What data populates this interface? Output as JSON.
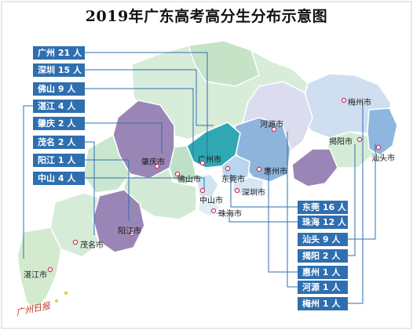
{
  "title": "2019年广东高考高分生分布示意图",
  "left_labels": [
    {
      "id": "guangzhou",
      "text": "广州 21 人"
    },
    {
      "id": "shenzhen",
      "text": "深圳 15 人"
    },
    {
      "id": "foshan",
      "text": "佛山 9 人"
    },
    {
      "id": "zhanjiang",
      "text": "湛江 4 人"
    },
    {
      "id": "zhaoqing",
      "text": "肇庆 2 人"
    },
    {
      "id": "maoming",
      "text": "茂名 2 人"
    },
    {
      "id": "yangjiang",
      "text": "阳江 1 人"
    },
    {
      "id": "zhongshan",
      "text": "中山 4 人"
    }
  ],
  "right_labels": [
    {
      "id": "dongguan",
      "text": "东莞 16 人"
    },
    {
      "id": "zhuhai",
      "text": "珠海 12 人"
    },
    {
      "id": "shantou",
      "text": "汕头 9 人"
    },
    {
      "id": "jieyang",
      "text": "揭阳 2 人"
    },
    {
      "id": "huizhou",
      "text": "惠州 1 人"
    },
    {
      "id": "heyuan",
      "text": "河源 1 人"
    },
    {
      "id": "meizhou",
      "text": "梅州 1 人"
    }
  ],
  "cities": {
    "meizhou": "梅州市",
    "heyuan": "河源市",
    "jieyang": "揭阳市",
    "shantou": "汕头市",
    "zhaoqing": "肇庆市",
    "guangzhou": "广州市",
    "dongguan": "东莞市",
    "huizhou": "惠州市",
    "foshan": "佛山市",
    "zhongshan": "中山市",
    "shenzhen": "深圳市",
    "zhuhai": "珠海市",
    "yangjiang": "阳江市",
    "maoming": "茂名市",
    "zhanjiang": "湛江市"
  },
  "watermark": "广州日报",
  "colors": {
    "label_bg": "#2f6fb0",
    "region_green": "#c9e7d2",
    "region_purple": "#9a86b6",
    "region_teal": "#2fa8b3",
    "region_lightblue": "#a9c9e6",
    "region_blue": "#6aa0d6",
    "leader_line": "#2f6fb0"
  }
}
